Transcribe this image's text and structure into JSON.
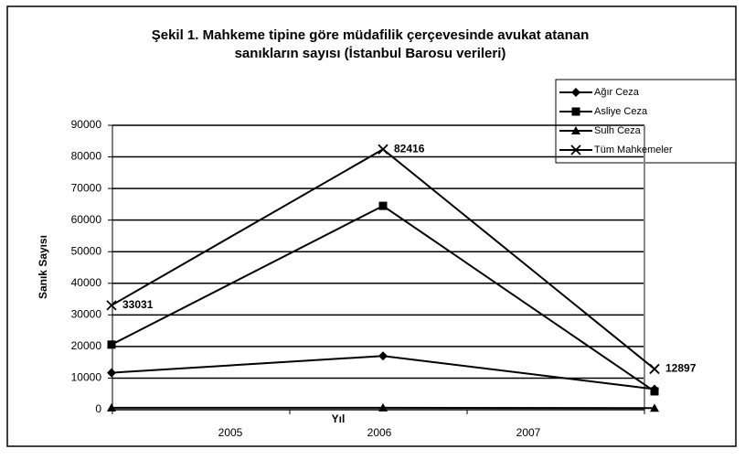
{
  "chart_data": {
    "type": "line",
    "title": "Şekil 1. Mahkeme tipine göre müdafilik çerçevesinde  avukat atanan",
    "subtitle": "sanıkların sayısı (İstanbul Barosu verileri)",
    "x_label": "Yıl",
    "y_label": "Sanık Sayısı",
    "categories": [
      "2005",
      "2006",
      "2007"
    ],
    "series": [
      {
        "name": "Ağır Ceza",
        "color": "#000000",
        "marker": "diamond",
        "values": [
          11700,
          17000,
          6500
        ]
      },
      {
        "name": "Asliye Ceza",
        "color": "#000000",
        "marker": "square",
        "values": [
          20600,
          64500,
          5800
        ]
      },
      {
        "name": "Sulh Ceza",
        "color": "#000000",
        "marker": "triangle",
        "values": [
          600,
          600,
          500
        ]
      },
      {
        "name": "Tüm Mahkemeler",
        "color": "#000000",
        "marker": "x",
        "values": [
          33031,
          82416,
          12897
        ],
        "data_labels": true
      }
    ],
    "ylim": [
      0,
      90000
    ],
    "yticks": [
      0,
      10000,
      20000,
      30000,
      40000,
      50000,
      60000,
      70000,
      80000,
      90000
    ],
    "grid": true,
    "legend": "top-right"
  }
}
